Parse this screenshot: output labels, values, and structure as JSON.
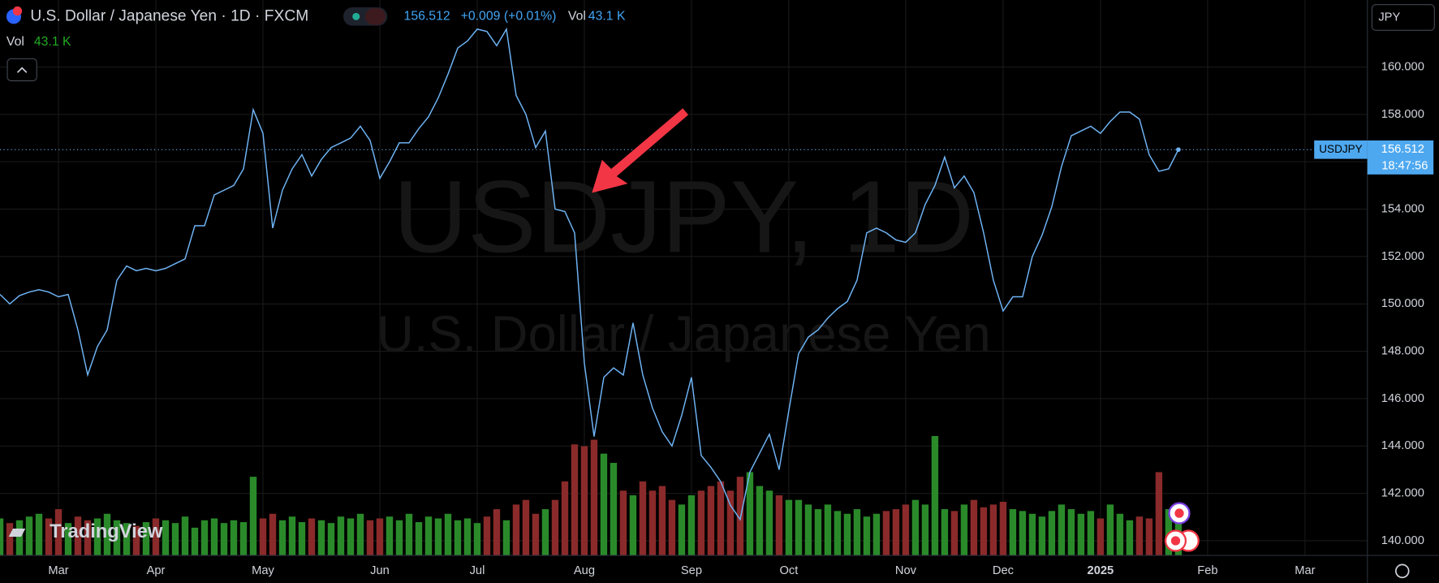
{
  "chart_data": {
    "type": "line",
    "title": "U.S. Dollar / Japanese Yen · 1D · FXCM",
    "symbol": "USDJPY",
    "color": "#6fb4f5",
    "categories": [
      null,
      null,
      null,
      null,
      null,
      null,
      "Mar",
      null,
      null,
      null,
      null,
      null,
      null,
      null,
      null,
      null,
      "Apr",
      null,
      null,
      null,
      null,
      null,
      null,
      null,
      null,
      null,
      null,
      "May",
      null,
      null,
      null,
      null,
      null,
      null,
      null,
      null,
      null,
      null,
      null,
      "Jun",
      null,
      null,
      null,
      null,
      null,
      null,
      null,
      null,
      null,
      "Jul",
      null,
      null,
      null,
      null,
      null,
      null,
      null,
      null,
      null,
      null,
      "Aug",
      null,
      null,
      null,
      null,
      null,
      null,
      null,
      null,
      null,
      null,
      "Sep",
      null,
      null,
      null,
      null,
      null,
      null,
      null,
      null,
      null,
      "Oct",
      null,
      null,
      null,
      null,
      null,
      null,
      null,
      null,
      null,
      null,
      null,
      "Nov",
      null,
      null,
      null,
      null,
      null,
      null,
      null,
      null,
      null,
      "Dec",
      null,
      null,
      null,
      null,
      null,
      null,
      null,
      null,
      null,
      "2025",
      null,
      null,
      null,
      null,
      null,
      null,
      null,
      null,
      null,
      null,
      "Feb",
      null,
      null,
      null,
      null,
      null,
      null,
      null,
      null,
      null,
      "Mar"
    ],
    "values": [
      150.4,
      150.0,
      150.35,
      150.5,
      150.6,
      150.5,
      150.3,
      150.4,
      148.9,
      147.0,
      148.2,
      148.9,
      151.0,
      151.6,
      151.4,
      151.5,
      151.4,
      151.5,
      151.7,
      151.9,
      153.3,
      153.3,
      154.6,
      154.8,
      155.0,
      155.7,
      158.2,
      157.2,
      153.2,
      154.8,
      155.7,
      156.3,
      155.4,
      156.1,
      156.6,
      156.8,
      157.0,
      157.5,
      156.9,
      155.3,
      156.0,
      156.8,
      156.8,
      157.4,
      157.9,
      158.7,
      159.7,
      160.8,
      161.1,
      161.6,
      161.5,
      160.9,
      161.6,
      158.8,
      158.0,
      156.6,
      157.3,
      154.0,
      153.9,
      153.0,
      147.5,
      144.4,
      146.9,
      147.3,
      147.0,
      149.2,
      147.0,
      145.6,
      144.6,
      144.0,
      145.3,
      146.9,
      143.6,
      143.1,
      142.5,
      141.5,
      140.9,
      142.9,
      143.7,
      144.5,
      143.0,
      145.5,
      147.9,
      148.6,
      148.9,
      149.4,
      149.8,
      150.1,
      151.0,
      153.0,
      153.2,
      153.0,
      152.7,
      152.6,
      153.0,
      154.2,
      155.0,
      156.2,
      154.9,
      155.4,
      154.7,
      153.0,
      151.0,
      149.7,
      150.3,
      150.3,
      152.0,
      152.9,
      154.1,
      155.8,
      157.1,
      157.3,
      157.5,
      157.2,
      157.7,
      158.1,
      158.1,
      157.8,
      156.3,
      155.6,
      155.7,
      156.512,
      null,
      null,
      null,
      null,
      null,
      null,
      null,
      null,
      null,
      null,
      null,
      null,
      null
    ],
    "volume": [
      40,
      35,
      38,
      42,
      45,
      40,
      50,
      35,
      42,
      38,
      40,
      45,
      38,
      35,
      32,
      36,
      40,
      38,
      35,
      42,
      30,
      38,
      40,
      35,
      38,
      36,
      85,
      40,
      45,
      38,
      42,
      36,
      40,
      38,
      35,
      42,
      40,
      45,
      38,
      40,
      42,
      38,
      45,
      36,
      42,
      40,
      45,
      38,
      40,
      35,
      42,
      50,
      38,
      55,
      60,
      45,
      50,
      60,
      80,
      120,
      118,
      125,
      110,
      100,
      70,
      65,
      80,
      70,
      75,
      60,
      55,
      65,
      70,
      75,
      80,
      70,
      85,
      90,
      75,
      70,
      65,
      60,
      60,
      55,
      50,
      55,
      48,
      45,
      50,
      42,
      45,
      48,
      50,
      55,
      60,
      55,
      129,
      50,
      48,
      55,
      60,
      52,
      55,
      58,
      50,
      48,
      45,
      42,
      48,
      55,
      50,
      45,
      48,
      40,
      55,
      45,
      38,
      42,
      40,
      90,
      50,
      43.1,
      null,
      null,
      null,
      null,
      null,
      null,
      null,
      null,
      null,
      null,
      null,
      null,
      null
    ],
    "volume_ylim": [
      0,
      600
    ],
    "volume_up_color": "#2a8a2a",
    "volume_down_color": "#8a2a2a",
    "ylim": [
      139.38,
      162.83
    ],
    "yticks": [
      {
        "value": 140,
        "label": "140.000"
      },
      {
        "value": 142,
        "label": "142.000"
      },
      {
        "value": 144,
        "label": "144.000"
      },
      {
        "value": 146,
        "label": "146.000"
      },
      {
        "value": 148,
        "label": "148.000"
      },
      {
        "value": 150,
        "label": "150.000"
      },
      {
        "value": 152,
        "label": "152.000"
      },
      {
        "value": 154,
        "label": "154.000"
      },
      {
        "value": 156,
        "label": "156.000"
      },
      {
        "value": 158,
        "label": "158.000"
      },
      {
        "value": 160,
        "label": "160.000"
      }
    ],
    "grid": true
  },
  "header": {
    "change": "+0.009 (+0.01%)",
    "vol_label": "Vol",
    "vol_value": "43.1 K",
    "currency": "JPY",
    "countdown": "18:47:56",
    "watermark_symbol": "USDJPY, 1D",
    "watermark_name": "U.S. Dollar / Japanese Yen",
    "brand": "TradingView"
  }
}
